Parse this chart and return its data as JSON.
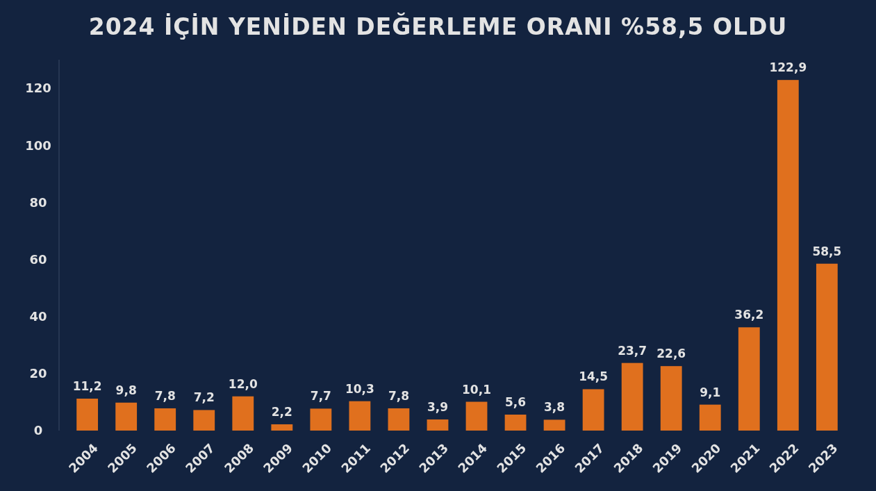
{
  "chart_data": {
    "type": "bar",
    "title": "2024 İÇİN YENİDEN DEĞERLEME ORANI %58,5 OLDU",
    "categories": [
      "2004",
      "2005",
      "2006",
      "2007",
      "2008",
      "2009",
      "2010",
      "2011",
      "2012",
      "2013",
      "2014",
      "2015",
      "2016",
      "2017",
      "2018",
      "2019",
      "2020",
      "2021",
      "2022",
      "2023"
    ],
    "values": [
      11.2,
      9.8,
      7.8,
      7.2,
      12.0,
      2.2,
      7.7,
      10.3,
      7.8,
      3.9,
      10.1,
      5.6,
      3.8,
      14.5,
      23.7,
      22.6,
      9.1,
      36.2,
      122.9,
      58.5
    ],
    "value_labels": [
      "11,2",
      "9,8",
      "7,8",
      "7,2",
      "12,0",
      "2,2",
      "7,7",
      "10,3",
      "7,8",
      "3,9",
      "10,1",
      "5,6",
      "3,8",
      "14,5",
      "23,7",
      "22,6",
      "9,1",
      "36,2",
      "122,9",
      "58,5"
    ],
    "color": "#e0701e",
    "ylim": [
      0,
      130
    ],
    "yticks": [
      0,
      20,
      40,
      60,
      80,
      100,
      120
    ],
    "grid": false
  }
}
